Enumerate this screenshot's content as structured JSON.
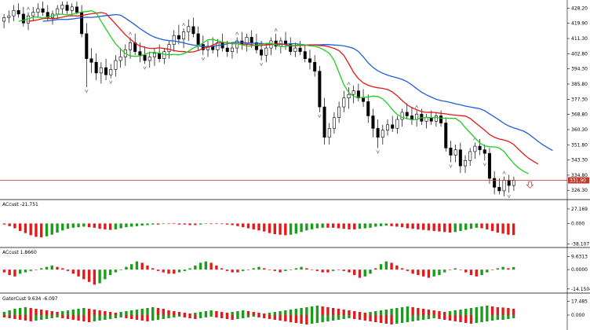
{
  "chart_data": {
    "type": "candlestick",
    "colors": {
      "background": "#ffffff",
      "candle_up": "#ffffff",
      "candle_down": "#000000",
      "candle_border": "#000000",
      "alligator_jaw": "#1f5fd6",
      "alligator_teeth": "#e31a1a",
      "alligator_lips": "#22cc22",
      "current_price_line": "#c0392b",
      "bar_up": "#1a9d1a",
      "bar_down": "#e31a1a",
      "fractal_marker": "#808080",
      "signal_arrow": "#e34d4d"
    },
    "main": {
      "y_ticks": [
        "428.20",
        "419.90",
        "411.30",
        "402.80",
        "394.30",
        "385.80",
        "377.30",
        "368.80",
        "360.30",
        "351.80",
        "343.30",
        "334.80",
        "326.30"
      ],
      "y_range": [
        322.0,
        432.0
      ],
      "current_price": "331.90",
      "current_price_value": 331.9,
      "candles": [
        {
          "o": 421,
          "h": 425,
          "l": 417,
          "c": 423
        },
        {
          "o": 423,
          "h": 427,
          "l": 420,
          "c": 424
        },
        {
          "o": 424,
          "h": 430,
          "l": 421,
          "c": 427
        },
        {
          "o": 427,
          "h": 431,
          "l": 423,
          "c": 425
        },
        {
          "o": 425,
          "h": 429,
          "l": 418,
          "c": 420
        },
        {
          "o": 420,
          "h": 426,
          "l": 416,
          "c": 424
        },
        {
          "o": 424,
          "h": 429,
          "l": 421,
          "c": 426
        },
        {
          "o": 426,
          "h": 431,
          "l": 423,
          "c": 428
        },
        {
          "o": 428,
          "h": 432,
          "l": 424,
          "c": 426
        },
        {
          "o": 426,
          "h": 430,
          "l": 421,
          "c": 423
        },
        {
          "o": 423,
          "h": 427,
          "l": 419,
          "c": 425
        },
        {
          "o": 425,
          "h": 430,
          "l": 422,
          "c": 428
        },
        {
          "o": 428,
          "h": 432,
          "l": 425,
          "c": 430
        },
        {
          "o": 430,
          "h": 432,
          "l": 425,
          "c": 427
        },
        {
          "o": 427,
          "h": 431,
          "l": 424,
          "c": 429
        },
        {
          "o": 429,
          "h": 432,
          "l": 425,
          "c": 426
        },
        {
          "o": 426,
          "h": 430,
          "l": 412,
          "c": 414
        },
        {
          "o": 414,
          "h": 420,
          "l": 384,
          "c": 400
        },
        {
          "o": 400,
          "h": 406,
          "l": 392,
          "c": 398
        },
        {
          "o": 398,
          "h": 403,
          "l": 388,
          "c": 392
        },
        {
          "o": 392,
          "h": 398,
          "l": 386,
          "c": 395
        },
        {
          "o": 395,
          "h": 400,
          "l": 388,
          "c": 391
        },
        {
          "o": 391,
          "h": 397,
          "l": 389,
          "c": 394
        },
        {
          "o": 394,
          "h": 402,
          "l": 390,
          "c": 399
        },
        {
          "o": 399,
          "h": 406,
          "l": 395,
          "c": 401
        },
        {
          "o": 401,
          "h": 408,
          "l": 396,
          "c": 405
        },
        {
          "o": 405,
          "h": 412,
          "l": 400,
          "c": 409
        },
        {
          "o": 409,
          "h": 414,
          "l": 402,
          "c": 404
        },
        {
          "o": 404,
          "h": 409,
          "l": 398,
          "c": 402
        },
        {
          "o": 402,
          "h": 407,
          "l": 397,
          "c": 399
        },
        {
          "o": 399,
          "h": 404,
          "l": 395,
          "c": 401
        },
        {
          "o": 401,
          "h": 406,
          "l": 396,
          "c": 403
        },
        {
          "o": 403,
          "h": 408,
          "l": 398,
          "c": 400
        },
        {
          "o": 400,
          "h": 406,
          "l": 397,
          "c": 404
        },
        {
          "o": 404,
          "h": 410,
          "l": 400,
          "c": 408
        },
        {
          "o": 408,
          "h": 416,
          "l": 404,
          "c": 413
        },
        {
          "o": 413,
          "h": 419,
          "l": 408,
          "c": 411
        },
        {
          "o": 411,
          "h": 417,
          "l": 406,
          "c": 415
        },
        {
          "o": 415,
          "h": 422,
          "l": 410,
          "c": 418
        },
        {
          "o": 418,
          "h": 423,
          "l": 412,
          "c": 414
        },
        {
          "o": 414,
          "h": 418,
          "l": 405,
          "c": 408
        },
        {
          "o": 408,
          "h": 413,
          "l": 402,
          "c": 405
        },
        {
          "o": 405,
          "h": 410,
          "l": 401,
          "c": 407
        },
        {
          "o": 407,
          "h": 412,
          "l": 403,
          "c": 405
        },
        {
          "o": 405,
          "h": 411,
          "l": 401,
          "c": 409
        },
        {
          "o": 409,
          "h": 414,
          "l": 404,
          "c": 406
        },
        {
          "o": 406,
          "h": 410,
          "l": 401,
          "c": 404
        },
        {
          "o": 404,
          "h": 408,
          "l": 400,
          "c": 406
        },
        {
          "o": 406,
          "h": 412,
          "l": 403,
          "c": 410
        },
        {
          "o": 410,
          "h": 415,
          "l": 405,
          "c": 408
        },
        {
          "o": 408,
          "h": 414,
          "l": 404,
          "c": 412
        },
        {
          "o": 412,
          "h": 416,
          "l": 406,
          "c": 409
        },
        {
          "o": 409,
          "h": 414,
          "l": 403,
          "c": 405
        },
        {
          "o": 405,
          "h": 410,
          "l": 399,
          "c": 402
        },
        {
          "o": 402,
          "h": 408,
          "l": 398,
          "c": 406
        },
        {
          "o": 406,
          "h": 412,
          "l": 402,
          "c": 410
        },
        {
          "o": 410,
          "h": 414,
          "l": 405,
          "c": 407
        },
        {
          "o": 407,
          "h": 412,
          "l": 403,
          "c": 410
        },
        {
          "o": 410,
          "h": 415,
          "l": 405,
          "c": 408
        },
        {
          "o": 408,
          "h": 412,
          "l": 402,
          "c": 404
        },
        {
          "o": 404,
          "h": 409,
          "l": 401,
          "c": 406
        },
        {
          "o": 406,
          "h": 410,
          "l": 402,
          "c": 404
        },
        {
          "o": 404,
          "h": 408,
          "l": 398,
          "c": 400
        },
        {
          "o": 400,
          "h": 405,
          "l": 394,
          "c": 398
        },
        {
          "o": 398,
          "h": 402,
          "l": 390,
          "c": 393
        },
        {
          "o": 393,
          "h": 396,
          "l": 370,
          "c": 373
        },
        {
          "o": 373,
          "h": 378,
          "l": 352,
          "c": 356
        },
        {
          "o": 356,
          "h": 364,
          "l": 352,
          "c": 361
        },
        {
          "o": 361,
          "h": 370,
          "l": 358,
          "c": 367
        },
        {
          "o": 367,
          "h": 376,
          "l": 364,
          "c": 373
        },
        {
          "o": 373,
          "h": 382,
          "l": 370,
          "c": 378
        },
        {
          "o": 378,
          "h": 384,
          "l": 372,
          "c": 380
        },
        {
          "o": 380,
          "h": 385,
          "l": 375,
          "c": 382
        },
        {
          "o": 382,
          "h": 386,
          "l": 376,
          "c": 378
        },
        {
          "o": 378,
          "h": 383,
          "l": 373,
          "c": 376
        },
        {
          "o": 376,
          "h": 380,
          "l": 364,
          "c": 368
        },
        {
          "o": 368,
          "h": 372,
          "l": 356,
          "c": 361
        },
        {
          "o": 361,
          "h": 366,
          "l": 350,
          "c": 356
        },
        {
          "o": 356,
          "h": 363,
          "l": 352,
          "c": 360
        },
        {
          "o": 360,
          "h": 366,
          "l": 357,
          "c": 363
        },
        {
          "o": 363,
          "h": 368,
          "l": 359,
          "c": 361
        },
        {
          "o": 361,
          "h": 368,
          "l": 358,
          "c": 366
        },
        {
          "o": 366,
          "h": 372,
          "l": 362,
          "c": 370
        },
        {
          "o": 370,
          "h": 375,
          "l": 366,
          "c": 368
        },
        {
          "o": 368,
          "h": 373,
          "l": 363,
          "c": 366
        },
        {
          "o": 366,
          "h": 371,
          "l": 362,
          "c": 369
        },
        {
          "o": 369,
          "h": 372,
          "l": 363,
          "c": 365
        },
        {
          "o": 365,
          "h": 369,
          "l": 361,
          "c": 367
        },
        {
          "o": 367,
          "h": 371,
          "l": 363,
          "c": 365
        },
        {
          "o": 365,
          "h": 370,
          "l": 362,
          "c": 368
        },
        {
          "o": 368,
          "h": 371,
          "l": 362,
          "c": 364
        },
        {
          "o": 364,
          "h": 367,
          "l": 348,
          "c": 350
        },
        {
          "o": 350,
          "h": 354,
          "l": 342,
          "c": 346
        },
        {
          "o": 346,
          "h": 352,
          "l": 342,
          "c": 349
        },
        {
          "o": 349,
          "h": 353,
          "l": 336,
          "c": 340
        },
        {
          "o": 340,
          "h": 346,
          "l": 336,
          "c": 343
        },
        {
          "o": 343,
          "h": 350,
          "l": 340,
          "c": 348
        },
        {
          "o": 348,
          "h": 353,
          "l": 344,
          "c": 351
        },
        {
          "o": 351,
          "h": 355,
          "l": 346,
          "c": 349
        },
        {
          "o": 349,
          "h": 352,
          "l": 343,
          "c": 347
        },
        {
          "o": 347,
          "h": 350,
          "l": 330,
          "c": 333
        },
        {
          "o": 333,
          "h": 337,
          "l": 324,
          "c": 328
        },
        {
          "o": 328,
          "h": 333,
          "l": 324,
          "c": 326
        },
        {
          "o": 326,
          "h": 334,
          "l": 323,
          "c": 332
        },
        {
          "o": 332,
          "h": 335,
          "l": 325,
          "c": 329
        },
        {
          "o": 329,
          "h": 334,
          "l": 326,
          "c": 332
        }
      ],
      "fractals_up_idx": [
        5,
        12,
        26,
        37,
        48,
        56,
        71,
        85,
        97,
        103
      ],
      "fractals_down_idx": [
        17,
        22,
        29,
        41,
        53,
        65,
        77,
        92,
        99,
        104
      ],
      "signal_arrow_idx": 108
    },
    "panels": [
      {
        "title": "ACcust -21.751",
        "y_ticks": [
          "27.169",
          "0.000",
          "-38.107"
        ],
        "y_range": [
          -42.0,
          30.0
        ],
        "bar_count": 97,
        "values": [
          -2,
          -5,
          -9,
          -14,
          -18,
          -22,
          -25,
          -26,
          -24,
          -21,
          -17,
          -13,
          -10,
          -8,
          -7,
          -6,
          -7,
          -8,
          -10,
          -11,
          -12,
          -11,
          -9,
          -7,
          -6,
          -5,
          -4,
          -3,
          -2,
          -2,
          -1,
          -1,
          -1,
          -2,
          -2,
          -3,
          -3,
          -2,
          -1,
          -1,
          -1,
          -1,
          -2,
          -3,
          -5,
          -7,
          -9,
          -11,
          -13,
          -15,
          -18,
          -20,
          -21,
          -22,
          -21,
          -19,
          -16,
          -13,
          -11,
          -9,
          -8,
          -8,
          -8,
          -9,
          -10,
          -11,
          -11,
          -10,
          -9,
          -8,
          -6,
          -5,
          -4,
          -5,
          -6,
          -7,
          -9,
          -10,
          -11,
          -12,
          -13,
          -14,
          -15,
          -16,
          -17,
          -16,
          -14,
          -12,
          -10,
          -8,
          -9,
          -11,
          -14,
          -17,
          -19,
          -21,
          -21.751
        ]
      },
      {
        "title": "ACcust 1.8660",
        "y_ticks": [
          "9.6313",
          "0.0000",
          "-14.1504"
        ],
        "y_range": [
          -16.0,
          11.0
        ],
        "bar_count": 97,
        "values": [
          -2,
          -4,
          -5,
          -3,
          -2,
          -1,
          0,
          1,
          2,
          3,
          2,
          1,
          -1,
          -3,
          -5,
          -7,
          -9,
          -11,
          -10,
          -7,
          -4,
          -2,
          0,
          2,
          4,
          6,
          5,
          3,
          1,
          -1,
          -2,
          -3,
          -3,
          -2,
          -1,
          1,
          3,
          5,
          6,
          5,
          3,
          1,
          -1,
          -2,
          -2,
          -1,
          0,
          1,
          2,
          1,
          0,
          -1,
          -2,
          -1,
          0,
          1,
          2,
          1,
          0,
          -1,
          -2,
          -2,
          -1,
          0,
          -1,
          -2,
          -4,
          -6,
          -5,
          -3,
          1,
          4,
          6,
          5,
          3,
          1,
          -1,
          -3,
          -4,
          -5,
          -6,
          -5,
          -4,
          -2,
          0,
          1,
          0,
          -2,
          -4,
          -5,
          -4,
          -2,
          0,
          1,
          2,
          1,
          1.866
        ]
      },
      {
        "title": "GatorCust 9.634 -6.097",
        "y_ticks": [
          "17.485",
          "0.000"
        ],
        "y_range": [
          -18.0,
          18.0
        ],
        "bar_count": 97,
        "upper_values": [
          4,
          6,
          8,
          9,
          10,
          9,
          8,
          7,
          6,
          5,
          4,
          5,
          6,
          7,
          8,
          9,
          8,
          7,
          6,
          5,
          4,
          3,
          4,
          5,
          6,
          7,
          8,
          9,
          10,
          9,
          8,
          6,
          5,
          4,
          3,
          2,
          3,
          4,
          5,
          6,
          5,
          4,
          3,
          4,
          5,
          6,
          5,
          4,
          3,
          2,
          3,
          4,
          5,
          6,
          7,
          8,
          9,
          10,
          11,
          12,
          11,
          10,
          9,
          8,
          7,
          6,
          5,
          4,
          3,
          4,
          5,
          6,
          7,
          8,
          9,
          10,
          11,
          10,
          9,
          8,
          7,
          6,
          5,
          4,
          5,
          6,
          7,
          8,
          9,
          10,
          11,
          12,
          11,
          10,
          9.634,
          9,
          8
        ],
        "lower_values": [
          -3,
          -4,
          -5,
          -6,
          -7,
          -8,
          -7,
          -6,
          -5,
          -4,
          -3,
          -4,
          -5,
          -6,
          -7,
          -8,
          -9,
          -8,
          -7,
          -6,
          -5,
          -4,
          -3,
          -4,
          -5,
          -6,
          -7,
          -8,
          -7,
          -6,
          -5,
          -4,
          -3,
          -2,
          -3,
          -4,
          -5,
          -4,
          -3,
          -2,
          -3,
          -4,
          -5,
          -6,
          -5,
          -4,
          -3,
          -2,
          -3,
          -4,
          -5,
          -6,
          -7,
          -8,
          -9,
          -10,
          -11,
          -12,
          -11,
          -10,
          -9,
          -8,
          -7,
          -6,
          -5,
          -4,
          -5,
          -6,
          -7,
          -8,
          -9,
          -10,
          -11,
          -12,
          -11,
          -10,
          -9,
          -8,
          -7,
          -6,
          -5,
          -4,
          -5,
          -6,
          -7,
          -8,
          -9,
          -10,
          -11,
          -10,
          -9,
          -8,
          -7,
          -6.097,
          -6,
          -5,
          -4
        ]
      }
    ]
  }
}
